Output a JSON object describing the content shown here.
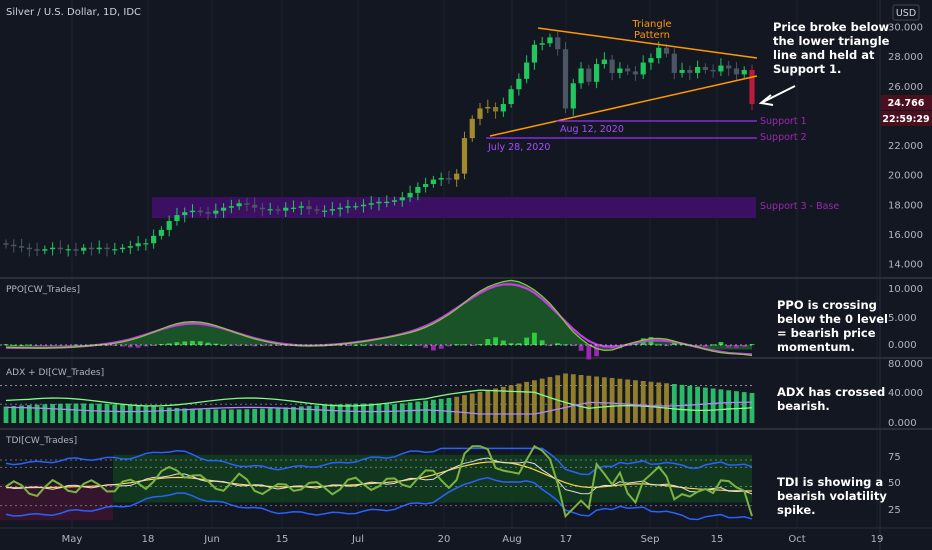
{
  "header": {
    "symbol_title": "Silver / U.S. Dollar, 1D, IDC",
    "currency": "USD"
  },
  "colors": {
    "bg": "#131722",
    "bull": "#22c55e",
    "bear": "#4b5563",
    "gold": "#a08a2d",
    "purple": "#9b30ff",
    "orange": "#ff9800",
    "red_candle": "#b71c3a",
    "pane_border": "#2a2e39"
  },
  "price_axis": {
    "ticks": [
      "30.000",
      "28.000",
      "26.000",
      "24.000",
      "22.000",
      "20.000",
      "18.000",
      "16.000",
      "14.000"
    ],
    "last_price": "24.766",
    "countdown": "22:59:29"
  },
  "time_axis": {
    "ticks": [
      "May",
      "18",
      "Jun",
      "15",
      "Jul",
      "20",
      "Aug",
      "17",
      "Sep",
      "15",
      "Oct",
      "19"
    ]
  },
  "annotations": {
    "triangle": "Triangle Pattern",
    "triangle_lines": [
      "Triangle",
      "Pattern"
    ],
    "broke_note": [
      "Price broke below",
      "the lower triangle",
      "line and held at",
      "Support 1."
    ],
    "support1": "Support 1",
    "support2": "Support 2",
    "support3": "Support 3 - Base",
    "date_aug": "Aug 12, 2020",
    "date_jul": "July 28, 2020",
    "ppo_note": [
      "PPO is crossing",
      "below the 0 level",
      "= bearish price",
      "momentum."
    ],
    "adx_note": [
      "ADX has crossed",
      "bearish."
    ],
    "tdi_note": [
      "TDI is showing a",
      "bearish volatility",
      "spike."
    ]
  },
  "panes": {
    "ppo": {
      "title": "PPO[CW_Trades]",
      "ticks": [
        "10.000",
        "5.000",
        "0.000"
      ]
    },
    "adx": {
      "title": "ADX + DI[CW_Trades]",
      "ticks": [
        "80.000",
        "40.000",
        "0.000"
      ]
    },
    "tdi": {
      "title": "TDI[CW_Trades]",
      "ticks": [
        "75",
        "50",
        "25"
      ]
    }
  },
  "chart_data": {
    "type": "candlestick",
    "title": "Silver / U.S. Dollar, 1D, IDC",
    "ylim": [
      13.5,
      31
    ],
    "levels": {
      "support1": 23.5,
      "support2": 22.4,
      "support3_base": [
        17.1,
        18.5
      ]
    },
    "triangle": {
      "upper": [
        [
          0,
          29.9
        ],
        [
          1,
          27.9
        ]
      ],
      "lower": [
        [
          0,
          22.6
        ],
        [
          1,
          26.6
        ]
      ]
    },
    "close_path": [
      15.3,
      15.2,
      15.1,
      15.0,
      14.9,
      15.0,
      15.1,
      15.0,
      15.0,
      14.9,
      15.1,
      15.0,
      15.1,
      15.0,
      15.0,
      15.1,
      15.2,
      15.4,
      15.4,
      15.9,
      16.3,
      16.9,
      17.3,
      17.5,
      17.6,
      17.5,
      17.4,
      17.6,
      17.8,
      17.9,
      18.1,
      18.0,
      17.8,
      17.7,
      17.7,
      17.6,
      17.8,
      17.8,
      17.9,
      17.7,
      17.6,
      17.6,
      17.7,
      17.8,
      17.9,
      17.9,
      18.0,
      18.1,
      18.2,
      18.2,
      18.3,
      18.5,
      18.8,
      19.2,
      19.4,
      19.7,
      19.8,
      19.7,
      20.1,
      22.5,
      23.8,
      24.5,
      24.6,
      24.3,
      24.8,
      25.8,
      26.5,
      27.6,
      28.8,
      28.9,
      29.3,
      28.5,
      24.5,
      26.2,
      27.2,
      26.3,
      27.5,
      27.8,
      26.9,
      27.2,
      27.0,
      26.8,
      27.6,
      27.9,
      28.6,
      28.2,
      26.9,
      27.1,
      26.9,
      27.3,
      27.1,
      27.0,
      27.4,
      27.2,
      26.8,
      27.1,
      24.8
    ],
    "series": [
      {
        "name": "PPO",
        "range": [
          -1,
          11
        ]
      },
      {
        "name": "ADX + DI",
        "range": [
          0,
          80
        ]
      },
      {
        "name": "TDI",
        "range": [
          15,
          90
        ]
      }
    ]
  }
}
